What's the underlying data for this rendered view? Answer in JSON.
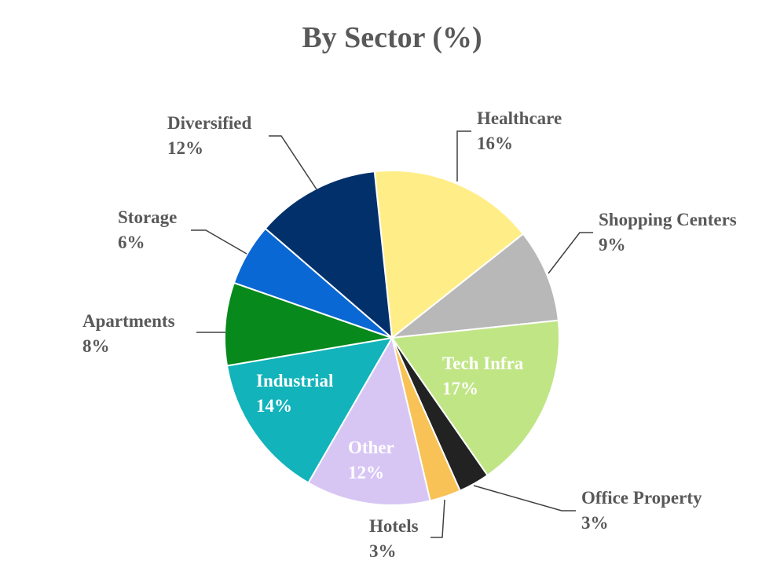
{
  "chart_data": {
    "type": "pie",
    "title": "By Sector (%)",
    "slices": [
      {
        "name": "Healthcare",
        "label": "16%",
        "value": 16,
        "color": "#FFEE88"
      },
      {
        "name": "Shopping Centers",
        "label": "9%",
        "value": 9,
        "color": "#B8B8B8"
      },
      {
        "name": "Tech Infra",
        "label": "17%",
        "value": 17,
        "color": "#C0E585"
      },
      {
        "name": "Office Property",
        "label": "3%",
        "value": 3,
        "color": "#222222"
      },
      {
        "name": "Hotels",
        "label": "3%",
        "value": 3,
        "color": "#F8C256"
      },
      {
        "name": "Other",
        "label": "12%",
        "value": 12,
        "color": "#D7C6F4"
      },
      {
        "name": "Industrial",
        "label": "14%",
        "value": 14,
        "color": "#12B3BA"
      },
      {
        "name": "Apartments",
        "label": "8%",
        "value": 8,
        "color": "#07891B"
      },
      {
        "name": "Storage",
        "label": "6%",
        "value": 6,
        "color": "#0A68D5"
      },
      {
        "name": "Diversified",
        "label": "12%",
        "value": 12,
        "color": "#02306B"
      }
    ],
    "label_color_outside": "#595959",
    "label_color_inside": "#ffffff"
  }
}
